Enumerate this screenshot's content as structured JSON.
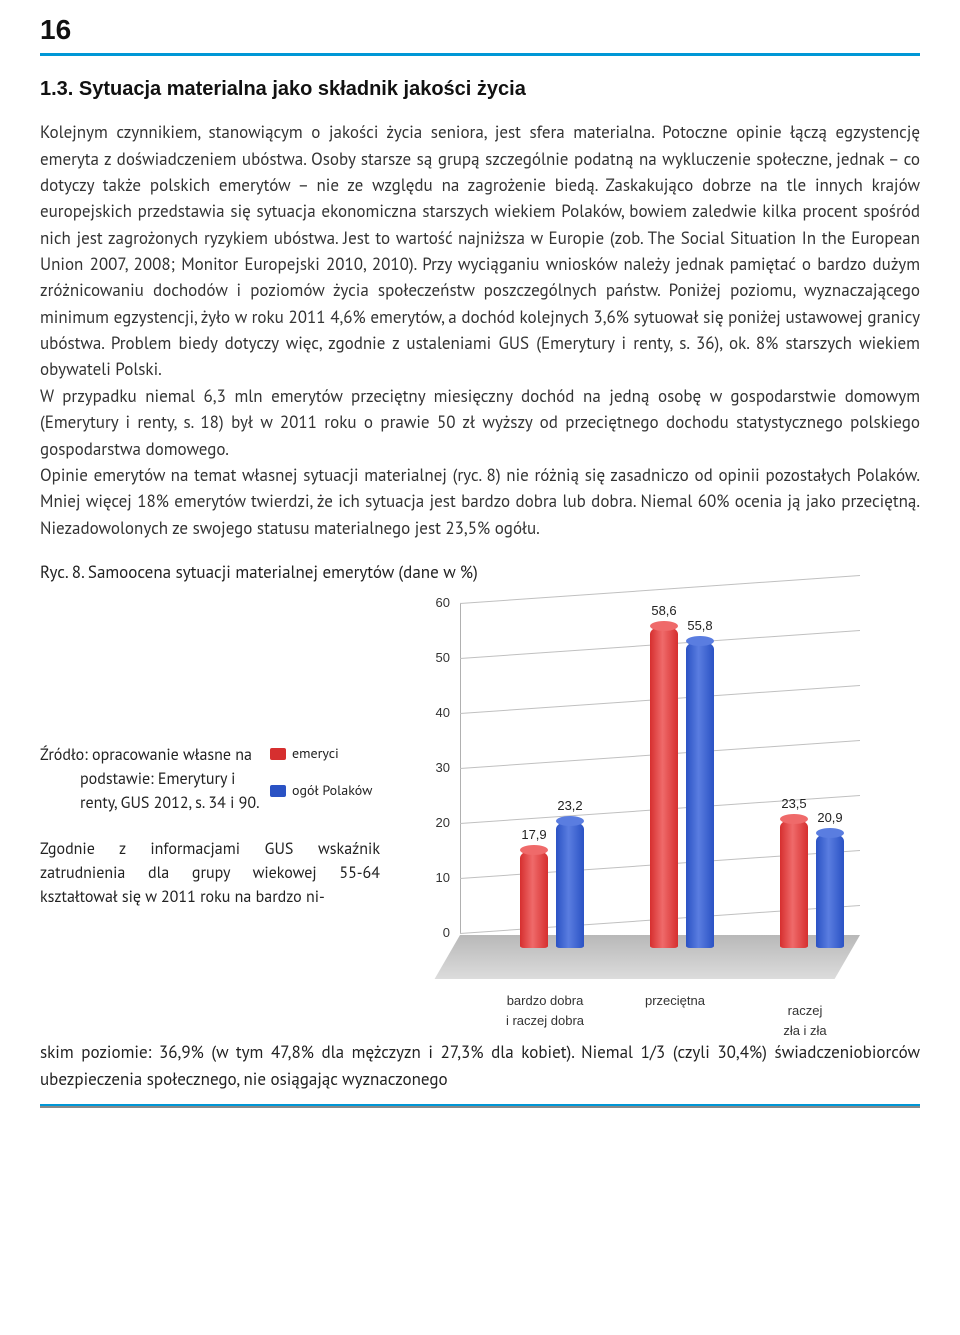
{
  "page_number": "16",
  "section_heading": "1.3. Sytuacja materialna jako składnik jakości życia",
  "paragraph1": "Kolejnym czynnikiem, stanowiącym o jakości życia seniora, jest sfera materialna. Potoczne opinie łączą egzystencję emeryta z doświadczeniem ubóstwa. Osoby starsze są grupą szczególnie podatną na wykluczenie społeczne, jednak – co dotyczy także polskich emerytów – nie ze względu na zagrożenie biedą. Zaskakująco dobrze na tle innych krajów europejskich przedstawia się sytuacja ekonomiczna starszych wiekiem Polaków, bowiem zaledwie kilka procent spośród nich jest zagrożonych ryzykiem ubóstwa. Jest to wartość najniższa w Europie (zob. The Social Situation In the European Union 2007, 2008; Monitor Europejski 2010, 2010). Przy wyciąganiu wniosków należy jednak pamiętać o bardzo dużym zróżnicowaniu dochodów i poziomów życia społeczeństw poszczególnych państw. Poniżej poziomu, wyznaczającego minimum egzystencji, żyło w roku 2011 4,6% emerytów, a dochód kolejnych 3,6% sytuował się poniżej ustawowej granicy ubóstwa. Problem biedy dotyczy więc, zgodnie z ustaleniami GUS (Emerytury i renty, s. 36), ok. 8% starszych wiekiem obywateli Polski.",
  "paragraph2": "W przypadku niemal 6,3 mln emerytów przeciętny miesięczny dochód na jedną osobę w gospodarstwie domowym (Emerytury i renty, s. 18) był w 2011 roku o prawie 50 zł wyższy od przeciętnego dochodu statystycznego polskiego gospodarstwa domowego.",
  "paragraph3": "Opinie emerytów na temat własnej sytuacji materialnej (ryc. 8) nie różnią się zasadniczo od opinii pozostałych Polaków. Mniej więcej 18% emerytów twierdzi, że ich sytuacja jest bardzo dobra lub dobra. Niemal 60% ocenia ją jako przeciętną. Niezadowolonych ze swojego statusu materialnego jest 23,5% ogółu.",
  "figure_caption": "Ryc. 8. Samoocena sytuacji materialnej emerytów (dane w %)",
  "source_a": "Źródło: opracowanie własne na",
  "source_b": "podstawie: Emerytury i renty, GUS 2012, s. 34 i 90.",
  "left_paragraph": "Zgodnie z informacjami GUS wskaźnik zatrudnienia dla grupy wiekowej 55-64 kształtował się w 2011 roku na bardzo ni-",
  "after_chart": "skim poziomie: 36,9% (w tym 47,8% dla mężczyzn i 27,3% dla kobiet). Niemal 1/3 (czyli 30,4%) świadczeniobiorców ubezpieczenia społecznego, nie osiągając wyznaczonego",
  "legend": {
    "series1": {
      "label": "emeryci",
      "color": "#d62f2f"
    },
    "series2": {
      "label": "ogół Polaków",
      "color": "#2a52c4"
    }
  },
  "chart": {
    "type": "bar",
    "ylim": [
      0,
      60
    ],
    "ytick_step": 10,
    "yticks": [
      "0",
      "10",
      "20",
      "30",
      "40",
      "50",
      "60"
    ],
    "categories": [
      "bardzo dobra\ni raczej dobra",
      "przeciętna",
      "raczej\nzła i zła"
    ],
    "series": [
      {
        "name": "emeryci",
        "color": "#d62f2f",
        "color_light": "#ef6a6a",
        "values": [
          17.9,
          58.6,
          23.5
        ]
      },
      {
        "name": "ogół Polaków",
        "color": "#2a52c4",
        "color_light": "#5a7de0",
        "values": [
          23.2,
          55.8,
          20.9
        ]
      }
    ],
    "value_labels": [
      [
        "17,9",
        "58,6",
        "23,5"
      ],
      [
        "23,2",
        "55,8",
        "20,9"
      ]
    ],
    "grid_color": "#c0c0c0",
    "floor_color": "#c8c8c8",
    "label_fontsize": 13
  }
}
